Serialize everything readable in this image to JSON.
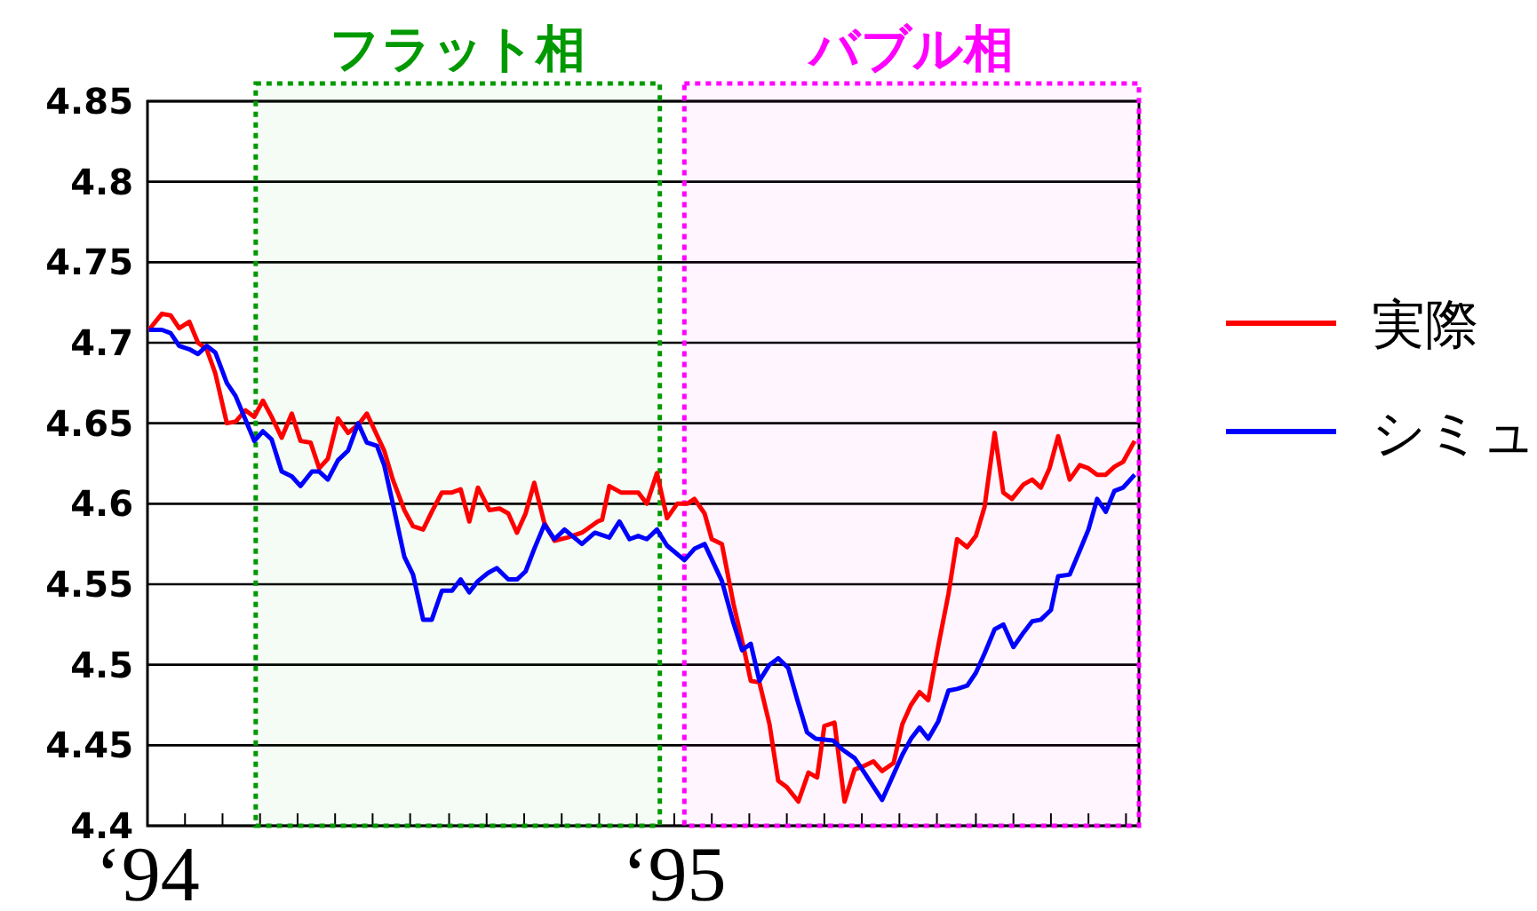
{
  "chart_data": {
    "type": "line",
    "xlim": [
      "1994-01-01",
      "1995-11-19"
    ],
    "ylim": [
      4.4,
      4.85
    ],
    "xticks": [
      {
        "value": "1994",
        "label": "‘94"
      },
      {
        "value": "1994-01-27",
        "label": null
      },
      {
        "value": "1994-02-22",
        "label": null
      },
      {
        "value": "1994-03-20",
        "label": null
      },
      {
        "value": "1994-04-15",
        "label": null
      },
      {
        "value": "1994-05-11",
        "label": null
      },
      {
        "value": "1994-06-06",
        "label": null
      },
      {
        "value": "1994-07-02",
        "label": null
      },
      {
        "value": "1994-07-29",
        "label": null
      },
      {
        "value": "1994-08-24",
        "label": null
      },
      {
        "value": "1994-09-19",
        "label": null
      },
      {
        "value": "1994-10-15",
        "label": null
      },
      {
        "value": "1994-11-10",
        "label": null
      },
      {
        "value": "1994-12-06",
        "label": null
      },
      {
        "value": "1995",
        "label": "‘95"
      },
      {
        "value": "1995-01-27",
        "label": null
      },
      {
        "value": "1995-02-22",
        "label": null
      },
      {
        "value": "1995-03-20",
        "label": null
      },
      {
        "value": "1995-04-15",
        "label": null
      },
      {
        "value": "1995-05-11",
        "label": null
      },
      {
        "value": "1995-06-06",
        "label": null
      },
      {
        "value": "1995-07-02",
        "label": null
      },
      {
        "value": "1995-07-29",
        "label": null
      },
      {
        "value": "1995-08-24",
        "label": null
      },
      {
        "value": "1995-09-19",
        "label": null
      },
      {
        "value": "1995-10-15",
        "label": null
      },
      {
        "value": "1995-11-10",
        "label": null
      }
    ],
    "yticks": [
      4.4,
      4.45,
      4.5,
      4.55,
      4.6,
      4.65,
      4.7,
      4.75,
      4.8,
      4.85
    ],
    "grid": "y",
    "legend": "right",
    "bands": [
      {
        "axis": "x",
        "from": "1994-03-17",
        "to": "1994-12-22",
        "label": "フラット相",
        "color": "#009900"
      },
      {
        "axis": "x",
        "from": "1995-01-08",
        "to": "1995-11-19",
        "label": "バブル相",
        "color": "#ff00ff"
      }
    ],
    "series": [
      {
        "name": "実際",
        "color": "#ff0000",
        "x": [
          "1994-01-02",
          "1994-01-11",
          "1994-01-17",
          "1994-01-23",
          "1994-01-30",
          "1994-02-05",
          "1994-02-11",
          "1994-02-17",
          "1994-02-25",
          "1994-03-03",
          "1994-03-10",
          "1994-03-16",
          "1994-03-22",
          "1994-03-28",
          "1994-04-04",
          "1994-04-11",
          "1994-04-17",
          "1994-04-24",
          "1994-04-30",
          "1994-05-06",
          "1994-05-13",
          "1994-05-20",
          "1994-05-27",
          "1994-06-02",
          "1994-06-14",
          "1994-06-20",
          "1994-06-28",
          "1994-07-04",
          "1994-07-11",
          "1994-07-17",
          "1994-07-24",
          "1994-07-31",
          "1994-08-06",
          "1994-08-12",
          "1994-08-18",
          "1994-08-26",
          "1994-09-02",
          "1994-09-08",
          "1994-09-14",
          "1994-09-20",
          "1994-09-26",
          "1994-10-03",
          "1994-10-10",
          "1994-10-19",
          "1994-10-29",
          "1994-11-09",
          "1994-11-12",
          "1994-11-17",
          "1994-11-25",
          "1994-12-07",
          "1994-12-13",
          "1994-12-20",
          "1994-12-27",
          "1995-01-03",
          "1995-01-10",
          "1995-01-15",
          "1995-01-22",
          "1995-01-27",
          "1995-02-03",
          "1995-02-11",
          "1995-02-18",
          "1995-02-23",
          "1995-03-01",
          "1995-03-08",
          "1995-03-14",
          "1995-03-20",
          "1995-03-28",
          "1995-04-04",
          "1995-04-10",
          "1995-04-15",
          "1995-04-22",
          "1995-04-29",
          "1995-05-06",
          "1995-05-12",
          "1995-05-19",
          "1995-05-25",
          "1995-06-02",
          "1995-06-08",
          "1995-06-14",
          "1995-06-20",
          "1995-06-26",
          "1995-07-03",
          "1995-07-10",
          "1995-07-16",
          "1995-07-23",
          "1995-07-29",
          "1995-08-04",
          "1995-08-11",
          "1995-08-17",
          "1995-08-23",
          "1995-08-31",
          "1995-09-06",
          "1995-09-12",
          "1995-09-18",
          "1995-09-24",
          "1995-10-02",
          "1995-10-09",
          "1995-10-15",
          "1995-10-21",
          "1995-10-27",
          "1995-11-02",
          "1995-11-08",
          "1995-11-16"
        ],
        "values": [
          4.708,
          4.718,
          4.717,
          4.709,
          4.713,
          4.7,
          4.696,
          4.681,
          4.65,
          4.651,
          4.658,
          4.654,
          4.664,
          4.654,
          4.641,
          4.656,
          4.639,
          4.638,
          4.622,
          4.628,
          4.653,
          4.644,
          4.649,
          4.656,
          4.633,
          4.615,
          4.596,
          4.586,
          4.584,
          4.595,
          4.607,
          4.607,
          4.609,
          4.589,
          4.61,
          4.596,
          4.597,
          4.594,
          4.582,
          4.594,
          4.613,
          4.588,
          4.577,
          4.579,
          4.582,
          4.589,
          4.59,
          4.611,
          4.607,
          4.607,
          4.6,
          4.619,
          4.591,
          4.6,
          4.6,
          4.603,
          4.594,
          4.578,
          4.575,
          4.538,
          4.511,
          4.49,
          4.489,
          4.463,
          4.428,
          4.424,
          4.415,
          4.433,
          4.43,
          4.462,
          4.464,
          4.415,
          4.435,
          4.437,
          4.44,
          4.434,
          4.439,
          4.463,
          4.475,
          4.483,
          4.478,
          4.512,
          4.544,
          4.578,
          4.573,
          4.58,
          4.598,
          4.644,
          4.607,
          4.603,
          4.612,
          4.615,
          4.61,
          4.622,
          4.642,
          4.615,
          4.624,
          4.622,
          4.618,
          4.618,
          4.623,
          4.626,
          4.639
        ]
      },
      {
        "name": "シミュ",
        "color": "#0000ff",
        "x": [
          "1994-01-02",
          "1994-01-11",
          "1994-01-17",
          "1994-01-23",
          "1994-01-30",
          "1994-02-05",
          "1994-02-11",
          "1994-02-17",
          "1994-02-25",
          "1994-03-03",
          "1994-03-10",
          "1994-03-16",
          "1994-03-22",
          "1994-03-28",
          "1994-04-04",
          "1994-04-11",
          "1994-04-17",
          "1994-04-25",
          "1994-04-30",
          "1994-05-06",
          "1994-05-13",
          "1994-05-20",
          "1994-05-27",
          "1994-06-02",
          "1994-06-09",
          "1994-06-14",
          "1994-06-20",
          "1994-06-28",
          "1994-07-04",
          "1994-07-11",
          "1994-07-17",
          "1994-07-24",
          "1994-07-31",
          "1994-08-06",
          "1994-08-12",
          "1994-08-18",
          "1994-08-25",
          "1994-08-31",
          "1994-09-08",
          "1994-09-14",
          "1994-09-20",
          "1994-09-26",
          "1994-10-03",
          "1994-10-10",
          "1994-10-17",
          "1994-10-29",
          "1994-11-07",
          "1994-11-17",
          "1994-11-24",
          "1994-12-01",
          "1994-12-07",
          "1994-12-13",
          "1994-12-20",
          "1994-12-27",
          "1995-01-08",
          "1995-01-15",
          "1995-01-22",
          "1995-02-03",
          "1995-02-11",
          "1995-02-17",
          "1995-02-23",
          "1995-03-01",
          "1995-03-08",
          "1995-03-14",
          "1995-03-21",
          "1995-03-27",
          "1995-04-03",
          "1995-04-09",
          "1995-04-21",
          "1995-04-28",
          "1995-05-06",
          "1995-05-12",
          "1995-05-25",
          "1995-06-02",
          "1995-06-08",
          "1995-06-14",
          "1995-06-20",
          "1995-06-26",
          "1995-07-03",
          "1995-07-10",
          "1995-07-16",
          "1995-07-23",
          "1995-07-29",
          "1995-08-04",
          "1995-08-11",
          "1995-08-17",
          "1995-08-24",
          "1995-08-31",
          "1995-09-06",
          "1995-09-12",
          "1995-09-19",
          "1995-09-24",
          "1995-10-02",
          "1995-10-09",
          "1995-10-15",
          "1995-10-21",
          "1995-10-27",
          "1995-11-02",
          "1995-11-08",
          "1995-11-16"
        ],
        "values": [
          4.708,
          4.708,
          4.706,
          4.698,
          4.696,
          4.693,
          4.698,
          4.694,
          4.675,
          4.667,
          4.652,
          4.639,
          4.645,
          4.64,
          4.62,
          4.617,
          4.611,
          4.62,
          4.62,
          4.615,
          4.627,
          4.633,
          4.65,
          4.638,
          4.636,
          4.624,
          4.6,
          4.567,
          4.556,
          4.528,
          4.528,
          4.546,
          4.546,
          4.553,
          4.545,
          4.552,
          4.557,
          4.56,
          4.553,
          4.553,
          4.558,
          4.572,
          4.587,
          4.578,
          4.584,
          4.575,
          4.582,
          4.579,
          4.589,
          4.578,
          4.58,
          4.578,
          4.584,
          4.574,
          4.565,
          4.572,
          4.575,
          4.552,
          4.526,
          4.509,
          4.513,
          4.49,
          4.5,
          4.504,
          4.498,
          4.479,
          4.458,
          4.454,
          4.453,
          4.447,
          4.442,
          4.434,
          4.416,
          4.432,
          4.444,
          4.454,
          4.461,
          4.454,
          4.465,
          4.484,
          4.485,
          4.487,
          4.495,
          4.507,
          4.522,
          4.525,
          4.511,
          4.52,
          4.527,
          4.528,
          4.534,
          4.555,
          4.556,
          4.571,
          4.584,
          4.603,
          4.595,
          4.608,
          4.61,
          4.618
        ]
      }
    ]
  }
}
